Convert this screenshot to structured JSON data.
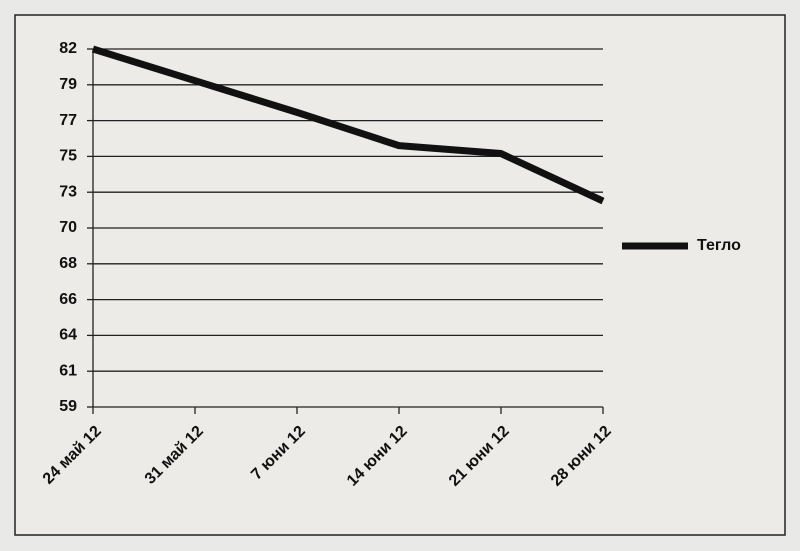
{
  "chart_data": {
    "type": "line",
    "categories": [
      "24 май 12",
      "31 май 12",
      "7 юни 12",
      "14 юни 12",
      "21 юни 12",
      "28 юни 12"
    ],
    "series": [
      {
        "name": "Тегло",
        "color": "#111111",
        "values": [
          81.6,
          79.6,
          77.6,
          75.5,
          75.0,
          72.0
        ]
      }
    ],
    "ylim": [
      59,
      81.6
    ],
    "yticks": [
      59,
      {
        "value": 61.26,
        "label": "61"
      },
      {
        "value": 63.52,
        "label": "64"
      },
      {
        "value": 65.78,
        "label": "66"
      },
      {
        "value": 68.04,
        "label": "68"
      },
      {
        "value": 70.3,
        "label": "70"
      },
      {
        "value": 72.56,
        "label": "73"
      },
      {
        "value": 74.82,
        "label": "75"
      },
      {
        "value": 77.08,
        "label": "77"
      },
      {
        "value": 79.34,
        "label": "79"
      },
      {
        "value": 81.6,
        "label": "82"
      }
    ],
    "grid": true,
    "legend": "right"
  }
}
